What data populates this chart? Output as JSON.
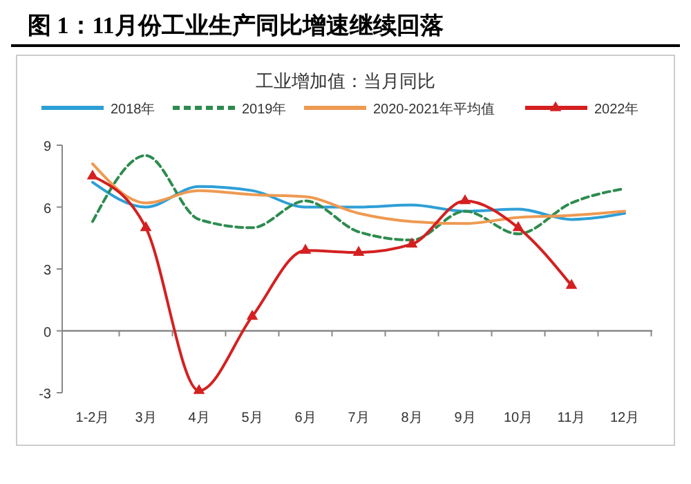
{
  "chart_data": {
    "type": "line",
    "title": "图 1：11月份工业生产同比增速继续回落",
    "subtitle": "工业增加值：当月同比",
    "categories": [
      "1-2月",
      "3月",
      "4月",
      "5月",
      "6月",
      "7月",
      "8月",
      "9月",
      "10月",
      "11月",
      "12月"
    ],
    "series": [
      {
        "name": "2018年",
        "color": "#2e9fd6",
        "values": [
          7.2,
          6.0,
          7.0,
          6.8,
          6.0,
          6.0,
          6.1,
          5.8,
          5.9,
          5.4,
          5.7
        ]
      },
      {
        "name": "2019年",
        "color": "#2e8b4f",
        "line_style": "dashed",
        "values": [
          5.3,
          8.5,
          5.4,
          5.0,
          6.3,
          4.8,
          4.4,
          5.8,
          4.7,
          6.2,
          6.9
        ]
      },
      {
        "name": "2020-2021年平均值",
        "color": "#ee9a52",
        "values": [
          8.1,
          6.2,
          6.8,
          6.6,
          6.5,
          5.7,
          5.3,
          5.2,
          5.5,
          5.6,
          5.8
        ]
      },
      {
        "name": "2022年",
        "color": "#d42020",
        "marker": "triangle",
        "values": [
          7.5,
          5.0,
          -2.9,
          0.7,
          3.9,
          3.8,
          4.2,
          6.3,
          5.0,
          2.2,
          null
        ]
      }
    ],
    "ylim": [
      -3,
      9
    ],
    "yticks": [
      -3,
      0,
      3,
      6,
      9
    ],
    "legend": "top"
  }
}
